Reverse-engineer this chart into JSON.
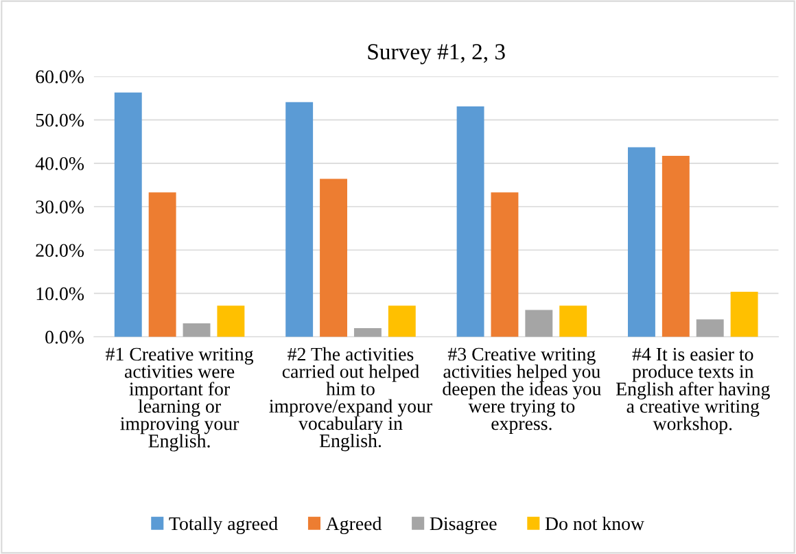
{
  "chart_data": {
    "type": "bar",
    "title": "Survey #1, 2, 3",
    "categories": [
      "#1 Creative writing activities were important for learning or improving your English.",
      "#2 The activities carried out helped him to improve/expand your vocabulary in English.",
      "#3 Creative writing activities helped you deepen the ideas you were trying to express.",
      "#4 It is easier to produce texts in English after having a creative writing workshop."
    ],
    "series": [
      {
        "name": "Totally agreed",
        "color": "#5b9bd5",
        "values": [
          56.3,
          54.1,
          53.1,
          43.7
        ]
      },
      {
        "name": "Agreed",
        "color": "#ed7d31",
        "values": [
          33.3,
          36.4,
          33.3,
          41.7
        ]
      },
      {
        "name": "Disagree",
        "color": "#a5a5a5",
        "values": [
          3.1,
          2.0,
          6.2,
          4.0
        ]
      },
      {
        "name": "Do not know",
        "color": "#ffc000",
        "values": [
          7.2,
          7.2,
          7.2,
          10.4
        ]
      }
    ],
    "ylim": [
      0,
      60
    ],
    "yticks": [
      {
        "value": 0,
        "label": "0.0%"
      },
      {
        "value": 10,
        "label": "10.0%"
      },
      {
        "value": 20,
        "label": "20.0%"
      },
      {
        "value": 30,
        "label": "30.0%"
      },
      {
        "value": 40,
        "label": "40.0%"
      },
      {
        "value": 50,
        "label": "50.0%"
      },
      {
        "value": 60,
        "label": "60.0%"
      }
    ],
    "grid": "y",
    "legend": "bottom"
  }
}
